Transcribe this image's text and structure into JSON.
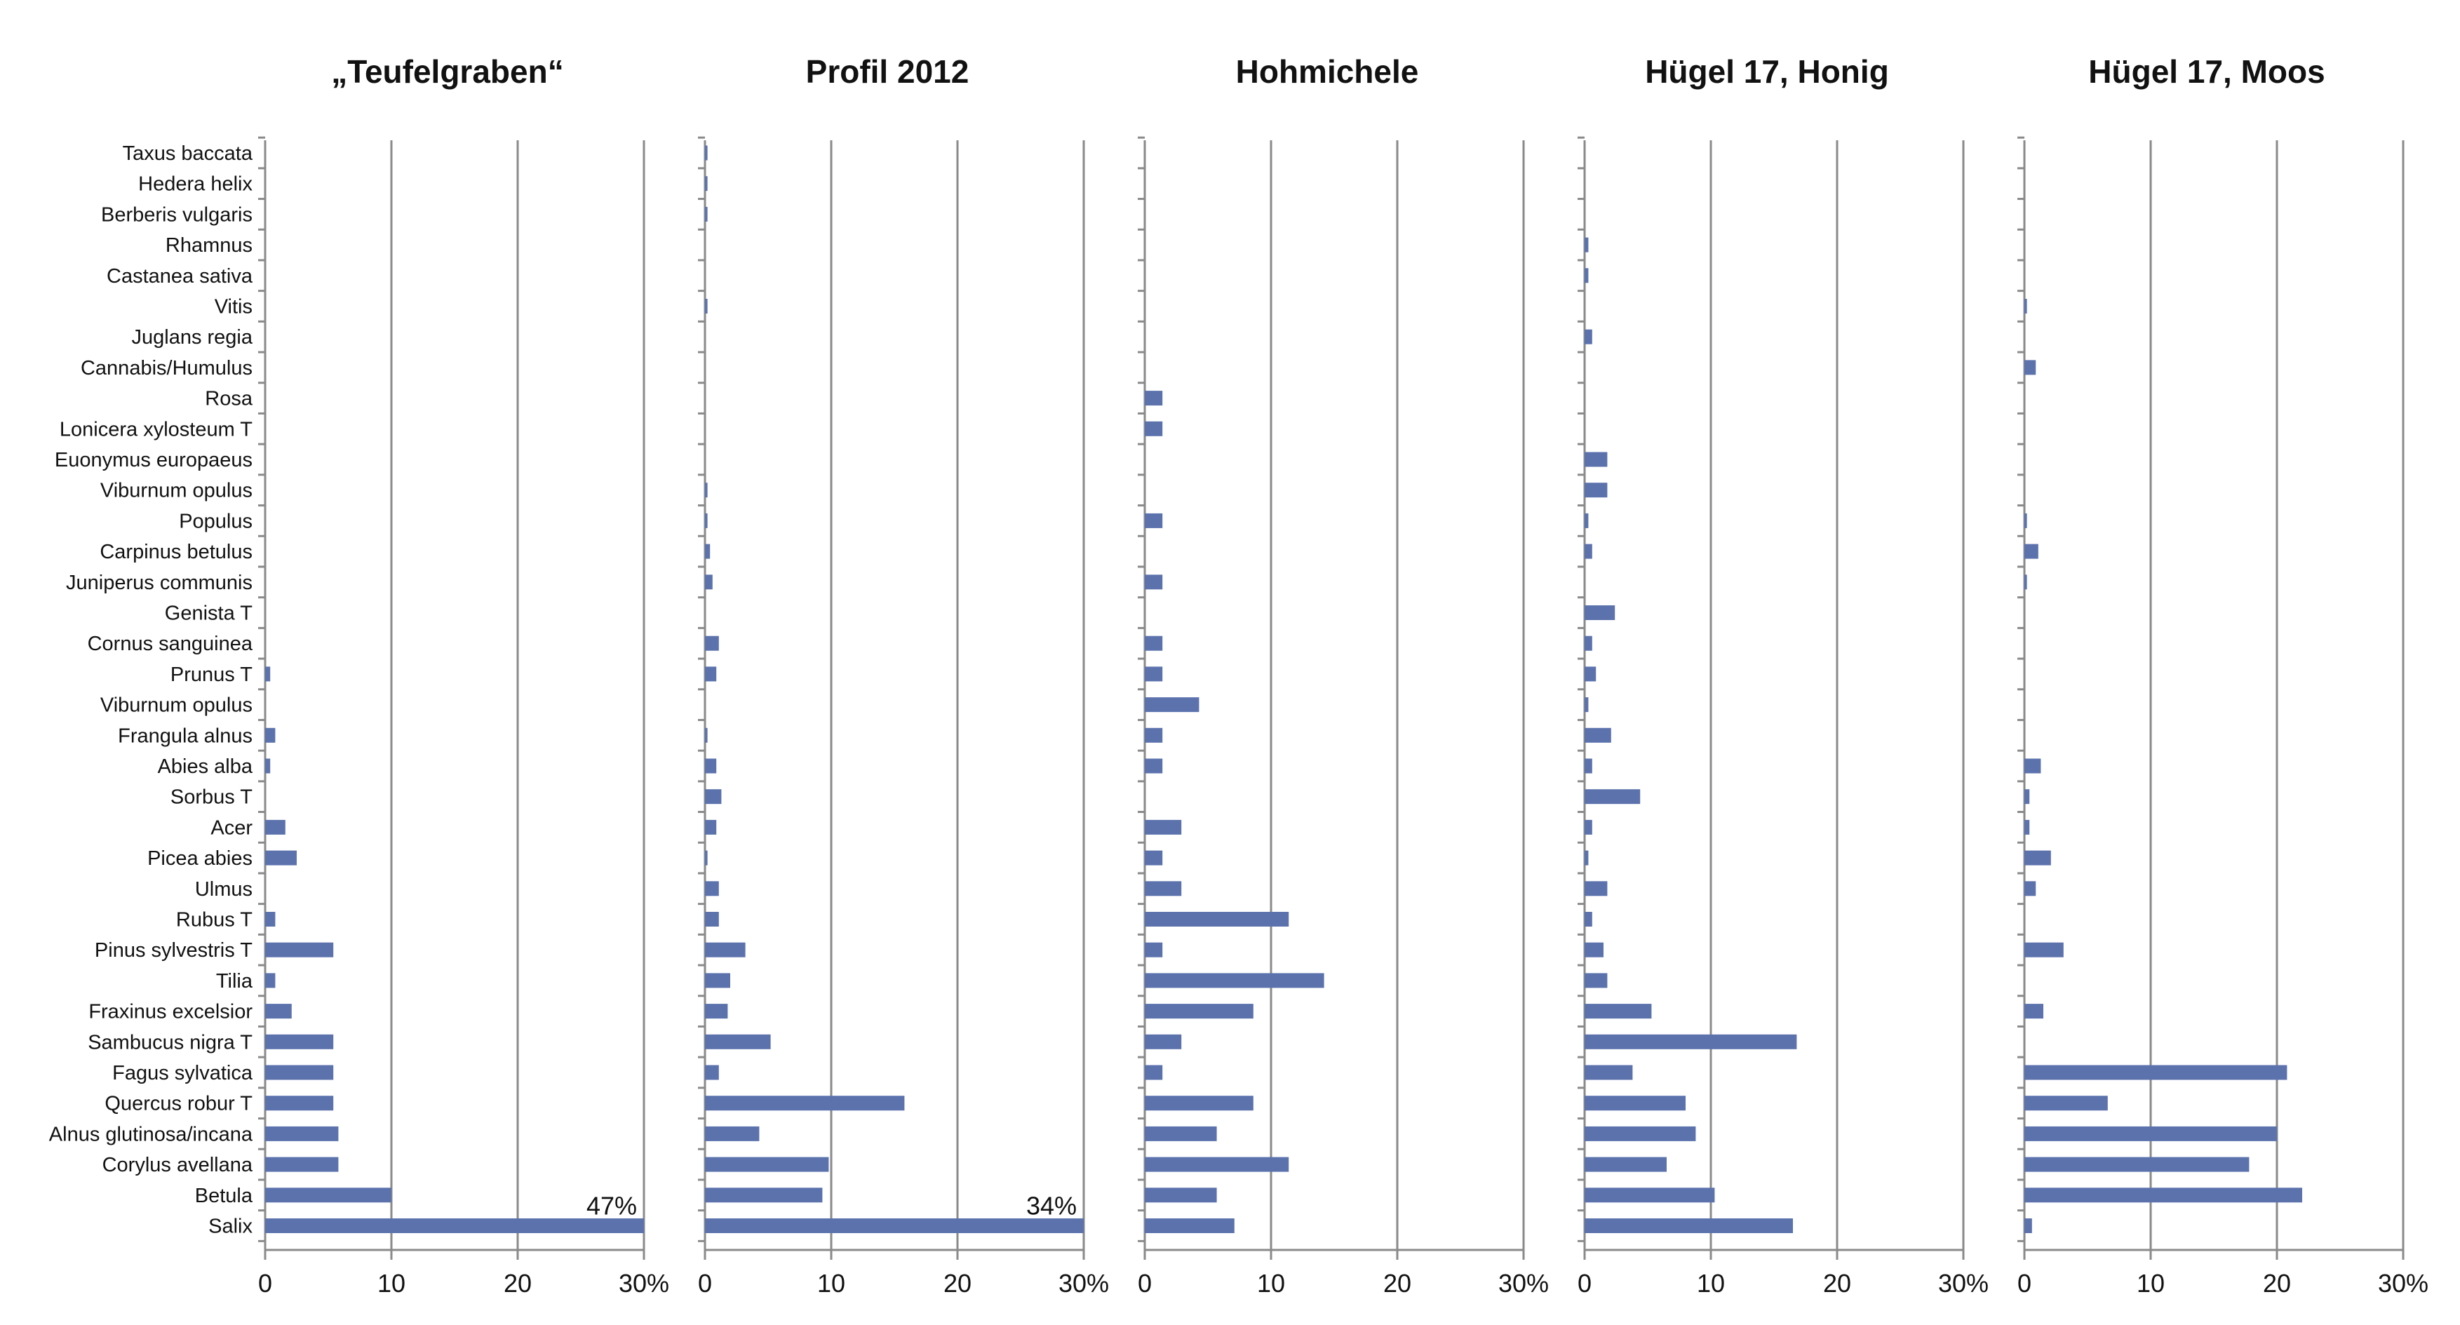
{
  "chart_data": {
    "type": "bar",
    "orientation": "horizontal",
    "x_axis_max_percent": 30,
    "tick_labels": [
      "0",
      "10",
      "20",
      "30%"
    ],
    "tick_values": [
      0,
      10,
      20,
      30
    ],
    "grid": "vertical lines at 10, 20, 30",
    "bar_color": "#5b72ad",
    "categories": [
      "Taxus baccata",
      "Hedera helix",
      "Berberis vulgaris",
      "Rhamnus",
      "Castanea sativa",
      "Vitis",
      "Juglans regia",
      "Cannabis/Humulus",
      "Rosa",
      "Lonicera xylosteum T",
      "Euonymus europaeus",
      "Viburnum opulus",
      "Populus",
      "Carpinus betulus",
      "Juniperus communis",
      "Genista T",
      "Cornus sanguinea",
      "Prunus T",
      "Viburnum opulus",
      "Frangula alnus",
      "Abies alba",
      "Sorbus T",
      "Acer",
      "Picea abies",
      "Ulmus",
      "Rubus T",
      "Pinus sylvestris T",
      "Tilia",
      "Fraxinus excelsior",
      "Sambucus nigra T",
      "Fagus sylvatica",
      "Quercus robur T",
      "Alnus glutinosa/incana",
      "Corylus avellana",
      "Betula",
      "Salix"
    ],
    "panels": [
      {
        "title": "„Teufelgraben“",
        "values": [
          0,
          0,
          0,
          0,
          0,
          0,
          0,
          0,
          0,
          0,
          0,
          0,
          0,
          0,
          0,
          0,
          0,
          0.4,
          0,
          0.8,
          0.4,
          0,
          1.6,
          2.5,
          0,
          0.8,
          5.4,
          0.8,
          2.1,
          5.4,
          5.4,
          5.4,
          5.8,
          5.8,
          10,
          47
        ],
        "annotations": [
          {
            "category_index": 35,
            "text": "47%"
          }
        ]
      },
      {
        "title": "Profil 2012",
        "values": [
          0.2,
          0.2,
          0.2,
          0,
          0,
          0.2,
          0,
          0,
          0,
          0,
          0,
          0.2,
          0.2,
          0.4,
          0.6,
          0,
          1.1,
          0.9,
          0,
          0.2,
          0.9,
          1.3,
          0.9,
          0.2,
          1.1,
          1.1,
          3.2,
          2.0,
          1.8,
          5.2,
          1.1,
          15.8,
          4.3,
          9.8,
          9.3,
          34
        ],
        "annotations": [
          {
            "category_index": 35,
            "text": "34%"
          }
        ]
      },
      {
        "title": "Hohmichele",
        "values": [
          0,
          0,
          0,
          0,
          0,
          0,
          0,
          0,
          1.4,
          1.4,
          0,
          0,
          1.4,
          0,
          1.4,
          0,
          1.4,
          1.4,
          4.3,
          1.4,
          1.4,
          0,
          2.9,
          1.4,
          2.9,
          11.4,
          1.4,
          14.2,
          8.6,
          2.9,
          1.4,
          8.6,
          5.7,
          11.4,
          5.7,
          7.1
        ],
        "annotations": []
      },
      {
        "title": "Hügel 17, Honig",
        "values": [
          0,
          0,
          0,
          0.3,
          0.3,
          0,
          0.6,
          0,
          0,
          0,
          1.8,
          1.8,
          0.3,
          0.6,
          0,
          2.4,
          0.6,
          0.9,
          0.3,
          2.1,
          0.6,
          4.4,
          0.6,
          0.3,
          1.8,
          0.6,
          1.5,
          1.8,
          5.3,
          16.8,
          3.8,
          8.0,
          8.8,
          6.5,
          10.3,
          16.5
        ],
        "annotations": []
      },
      {
        "title": "Hügel 17, Moos",
        "values": [
          0,
          0,
          0,
          0,
          0,
          0.2,
          0,
          0.9,
          0,
          0,
          0,
          0,
          0.2,
          1.1,
          0.2,
          0,
          0,
          0,
          0,
          0,
          1.3,
          0.4,
          0.4,
          2.1,
          0.9,
          0,
          3.1,
          0,
          1.5,
          0,
          20.8,
          6.6,
          20.0,
          17.8,
          22.0,
          0.6
        ],
        "annotations": []
      }
    ]
  }
}
